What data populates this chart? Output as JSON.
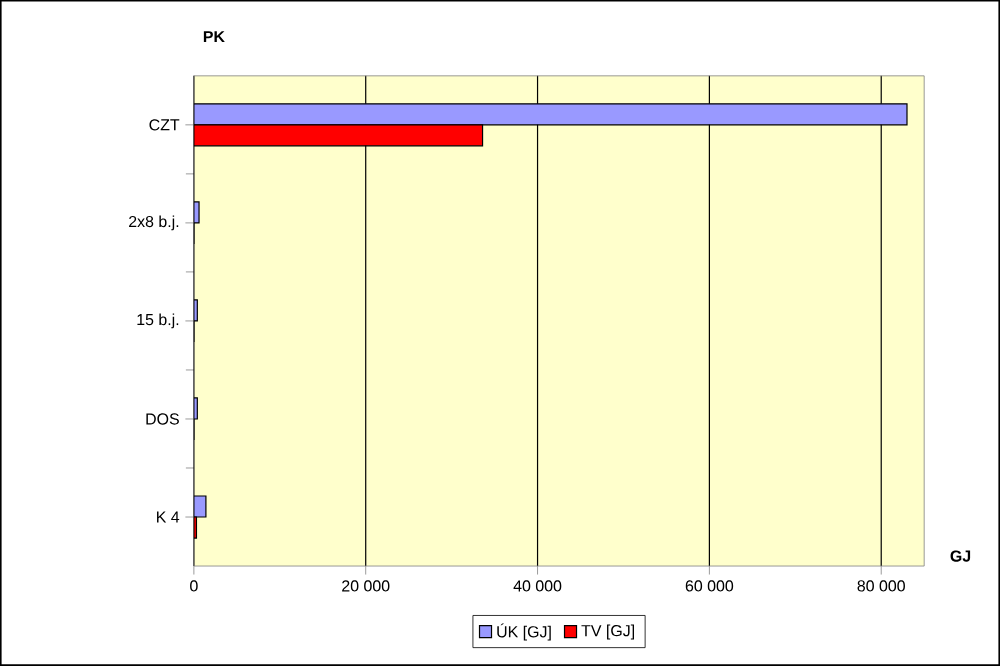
{
  "chart_data": {
    "type": "bar",
    "orientation": "horizontal",
    "ylabel": "PK",
    "xlabel": "GJ",
    "categories": [
      "CZT",
      "2x8 b.j.",
      "15 b.j.",
      "DOS",
      "K 4"
    ],
    "series": [
      {
        "name": "ÚK [GJ]",
        "color": "#9999ff",
        "values": [
          83000,
          600,
          400,
          400,
          1400
        ]
      },
      {
        "name": "TV [GJ]",
        "color": "#ff0000",
        "values": [
          33600,
          0,
          0,
          0,
          300
        ]
      }
    ],
    "xlim": [
      0,
      85000
    ],
    "xticks": [
      0,
      {
        "value": 20000,
        "label": "20 000"
      },
      {
        "value": 40000,
        "label": "40 000"
      },
      {
        "value": 60000,
        "label": "60 000"
      },
      {
        "value": 80000,
        "label": "80 000"
      }
    ],
    "grid": "x",
    "legend": "bottom"
  }
}
